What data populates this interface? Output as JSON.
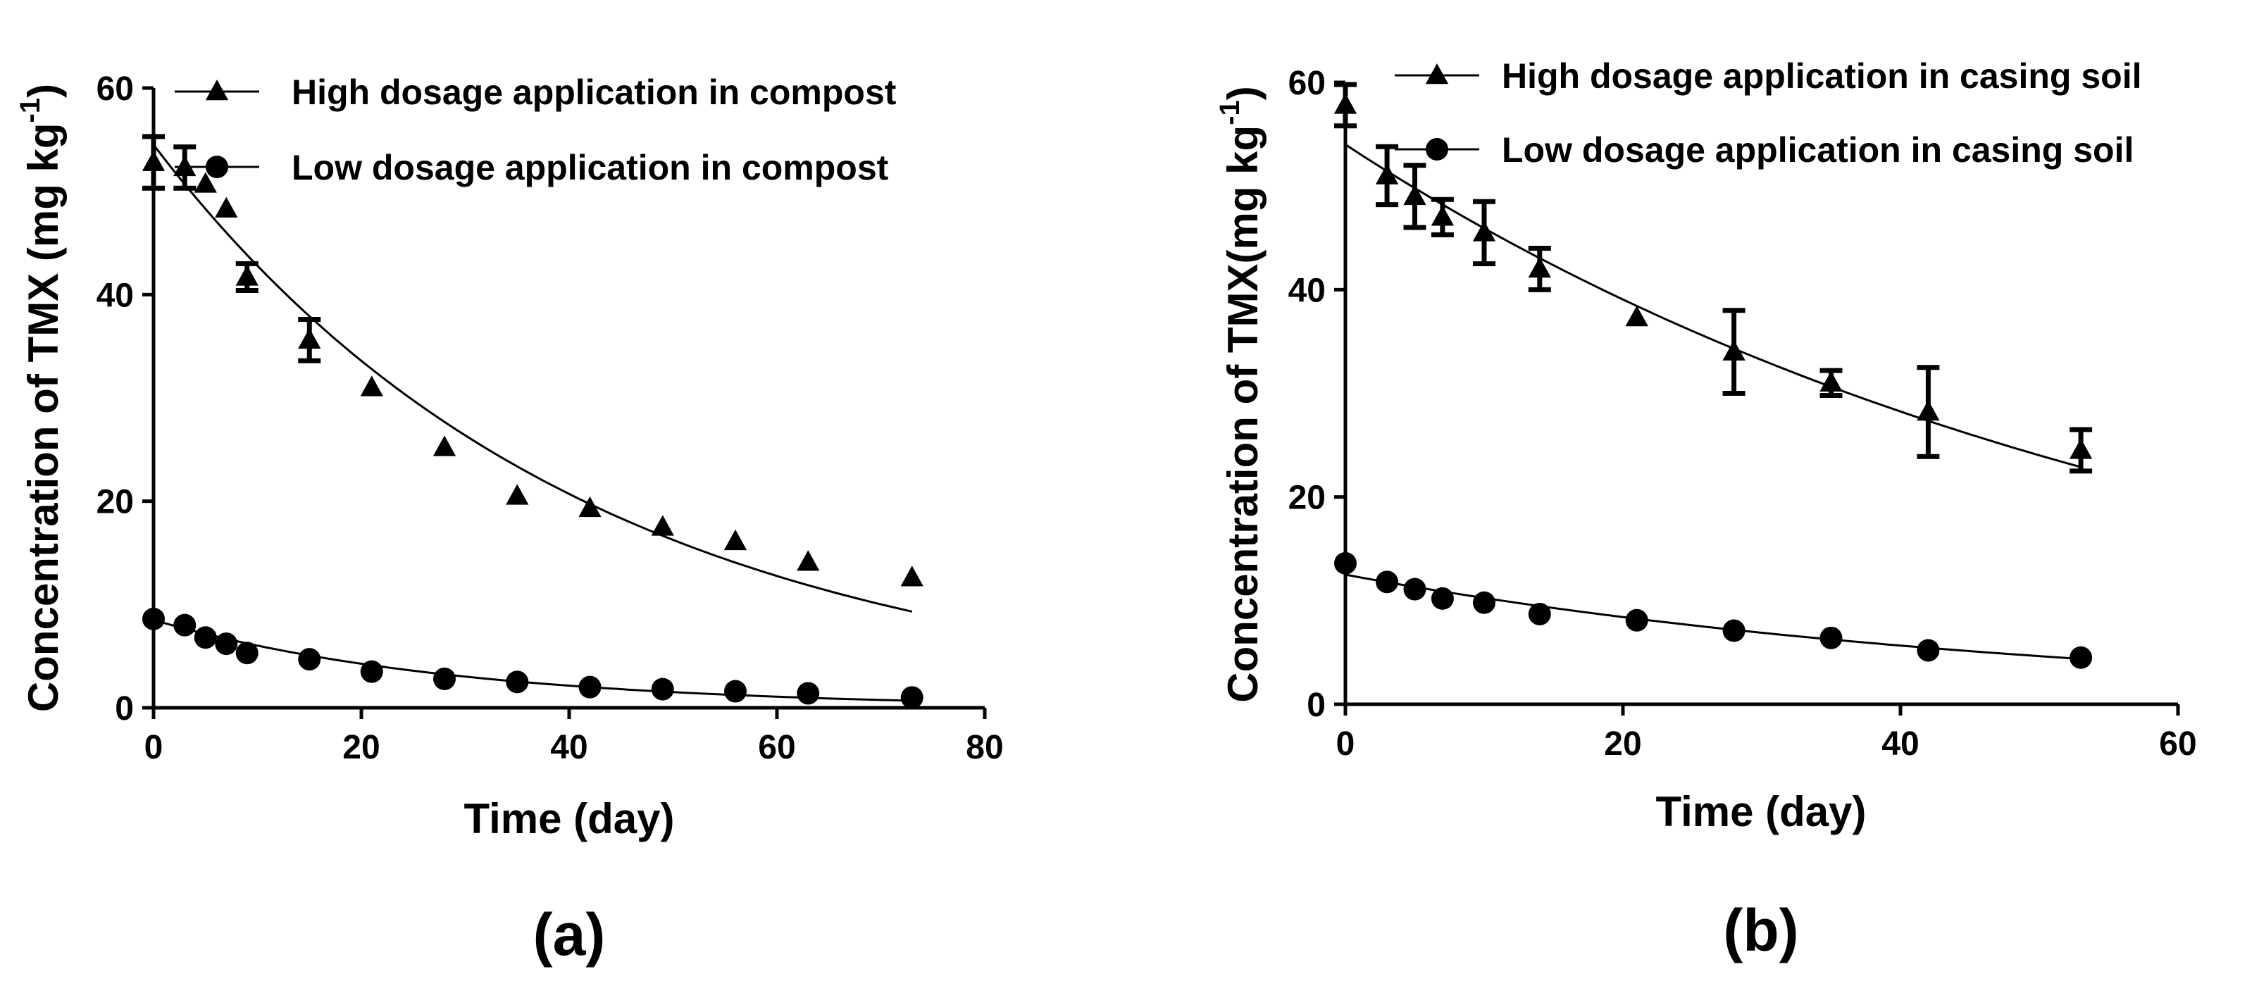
{
  "chart_data": [
    {
      "type": "scatter",
      "panel_label": "(a)",
      "xlabel": "Time (day)",
      "ylabel_main": "Concentration of TMX (mg kg",
      "ylabel_sup": "-1",
      "ylabel_close": ")",
      "xlim": [
        0,
        80
      ],
      "ylim": [
        0,
        60
      ],
      "xticks": [
        0,
        20,
        40,
        60,
        80
      ],
      "yticks": [
        0,
        20,
        40,
        60
      ],
      "grid": false,
      "legend_position": "top-right",
      "series": [
        {
          "name": "High dosage application in compost",
          "marker": "triangle",
          "x": [
            0,
            3,
            5,
            7,
            9,
            15,
            21,
            28,
            35,
            42,
            49,
            56,
            63,
            73
          ],
          "y": [
            52.8,
            52.3,
            50.7,
            48.3,
            41.7,
            35.6,
            31.0,
            25.2,
            20.5,
            19.3,
            17.5,
            16.1,
            14.1,
            12.6
          ],
          "err": [
            2.5,
            2.0,
            0,
            0,
            1.3,
            2.0,
            0,
            0,
            0,
            0,
            0,
            0,
            0,
            0
          ],
          "fit": {
            "a": 54.5,
            "k": 0.0242,
            "x0": 0,
            "x1": 73
          }
        },
        {
          "name": "Low dosage application in compost",
          "marker": "circle",
          "x": [
            0,
            3,
            5,
            7,
            9,
            15,
            21,
            28,
            35,
            42,
            49,
            56,
            63,
            73
          ],
          "y": [
            8.6,
            8.0,
            6.8,
            6.2,
            5.3,
            4.7,
            3.5,
            2.8,
            2.5,
            2.0,
            1.8,
            1.6,
            1.4,
            1.0
          ],
          "err": [
            0,
            0,
            0,
            0,
            0,
            0,
            0,
            0,
            0,
            0,
            0,
            0,
            0,
            0
          ],
          "fit": {
            "a": 8.5,
            "k": 0.0345,
            "x0": 0,
            "x1": 73
          }
        }
      ]
    },
    {
      "type": "scatter",
      "panel_label": "(b)",
      "xlabel": "Time (day)",
      "ylabel_main": "Concentration of TMX(mg kg",
      "ylabel_sup": "-1",
      "ylabel_close": ")",
      "xlim": [
        0,
        60
      ],
      "ylim": [
        0,
        60
      ],
      "xticks": [
        0,
        20,
        40,
        60
      ],
      "yticks": [
        0,
        20,
        40,
        60
      ],
      "grid": false,
      "legend_position": "top-right",
      "series": [
        {
          "name": "High  dosage application in casing soil",
          "marker": "triangle",
          "x": [
            0,
            3,
            5,
            7,
            10,
            14,
            21,
            28,
            35,
            42,
            53
          ],
          "y": [
            57.8,
            51.0,
            49.0,
            47.0,
            45.5,
            42.0,
            37.3,
            34.0,
            31.0,
            28.2,
            24.5
          ],
          "err": [
            2.0,
            2.8,
            3.0,
            1.7,
            3.0,
            2.0,
            0,
            4.0,
            1.2,
            4.3,
            2.0
          ],
          "fit": {
            "a": 54.0,
            "k": 0.0162,
            "x0": 0,
            "x1": 53
          }
        },
        {
          "name": "Low dosage application in casing soil",
          "marker": "circle",
          "x": [
            0,
            3,
            5,
            7,
            10,
            14,
            21,
            28,
            35,
            42,
            53
          ],
          "y": [
            13.6,
            11.8,
            11.1,
            10.2,
            9.8,
            8.7,
            8.1,
            7.1,
            6.4,
            5.2,
            4.5
          ],
          "err": [
            0,
            0,
            0,
            0,
            0,
            0,
            0,
            0,
            0,
            0,
            0
          ],
          "fit": {
            "a": 12.5,
            "k": 0.0198,
            "x0": 0,
            "x1": 53
          }
        }
      ]
    }
  ]
}
